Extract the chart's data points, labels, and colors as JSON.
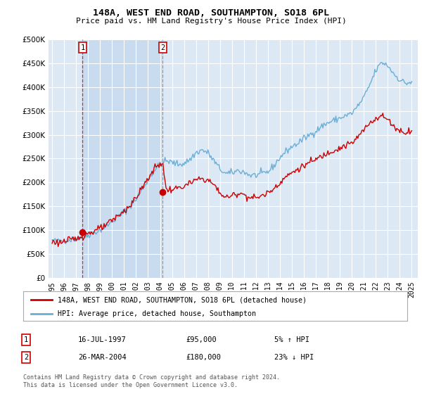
{
  "title": "148A, WEST END ROAD, SOUTHAMPTON, SO18 6PL",
  "subtitle": "Price paid vs. HM Land Registry's House Price Index (HPI)",
  "legend_line1": "148A, WEST END ROAD, SOUTHAMPTON, SO18 6PL (detached house)",
  "legend_line2": "HPI: Average price, detached house, Southampton",
  "table_row1_num": "1",
  "table_row1_date": "16-JUL-1997",
  "table_row1_price": "£95,000",
  "table_row1_hpi": "5% ↑ HPI",
  "table_row2_num": "2",
  "table_row2_date": "26-MAR-2004",
  "table_row2_price": "£180,000",
  "table_row2_hpi": "23% ↓ HPI",
  "footnote": "Contains HM Land Registry data © Crown copyright and database right 2024.\nThis data is licensed under the Open Government Licence v3.0.",
  "hpi_color": "#6baed6",
  "price_color": "#cc0000",
  "marker_color": "#cc0000",
  "bg_plot": "#dce9f5",
  "shade_color": "#c6d9ef",
  "bg_fig": "#ffffff",
  "grid_color": "#ffffff",
  "sale1_year": 1997.54,
  "sale1_price": 95000,
  "sale2_year": 2004.23,
  "sale2_price": 180000,
  "ylim": [
    0,
    500000
  ],
  "yticks": [
    0,
    50000,
    100000,
    150000,
    200000,
    250000,
    300000,
    350000,
    400000,
    450000,
    500000
  ],
  "xlim_start": 1994.7,
  "xlim_end": 2025.5
}
